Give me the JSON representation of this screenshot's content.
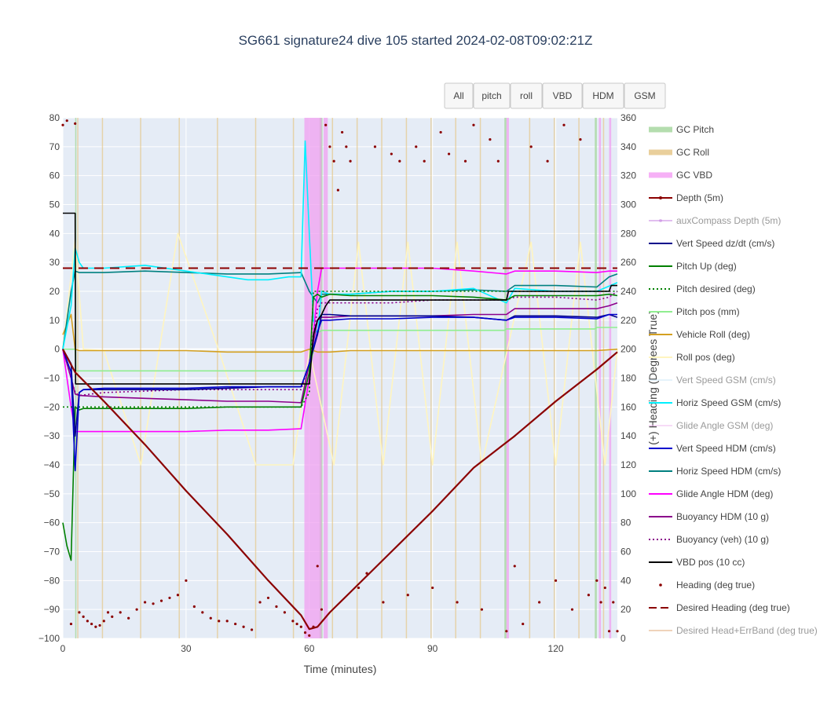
{
  "chart_data": {
    "type": "line",
    "title": "SG661 signature24 dive 105 started 2024-02-08T09:02:21Z",
    "xlabel": "Time (minutes)",
    "ylabel": "",
    "y2label": "(+) Heading (Degrees True)",
    "xlim": [
      0,
      135
    ],
    "ylim": [
      -100,
      80
    ],
    "y2lim": [
      0,
      360
    ],
    "xticks": [
      "0",
      "30",
      "60",
      "90",
      "120"
    ],
    "yticks": [
      "80",
      "70",
      "60",
      "50",
      "40",
      "30",
      "20",
      "10",
      "0",
      "−10",
      "−20",
      "−30",
      "−40",
      "−50",
      "−60",
      "−70",
      "−80",
      "−90",
      "−100"
    ],
    "y2ticks": [
      "360",
      "340",
      "320",
      "300",
      "280",
      "260",
      "240",
      "220",
      "200",
      "180",
      "160",
      "140",
      "120",
      "100",
      "80",
      "60",
      "40",
      "20",
      "0"
    ],
    "grid": true,
    "legend_position": "right",
    "buttons": [
      "All",
      "pitch",
      "roll",
      "VBD",
      "HDM",
      "GSM"
    ],
    "gc_pitch_intervals": [
      [
        3.0,
        3.3
      ],
      [
        62.5,
        63.2
      ],
      [
        107.5,
        108.0
      ],
      [
        129.5,
        130.0
      ]
    ],
    "gc_roll_intervals": [
      [
        3.5,
        3.7
      ],
      [
        9.5,
        9.7
      ],
      [
        18.8,
        19.0
      ],
      [
        28.2,
        28.4
      ],
      [
        37.5,
        37.7
      ],
      [
        46.8,
        47.0
      ],
      [
        56.0,
        56.2
      ],
      [
        65.5,
        65.7
      ],
      [
        71.5,
        71.7
      ],
      [
        77.5,
        77.7
      ],
      [
        83.5,
        83.7
      ],
      [
        89.5,
        89.7
      ],
      [
        95.5,
        95.7
      ],
      [
        101.5,
        101.7
      ],
      [
        113.5,
        113.7
      ],
      [
        119.5,
        119.7
      ],
      [
        125.5,
        125.7
      ],
      [
        131.5,
        131.7
      ]
    ],
    "gc_vbd_intervals": [
      [
        58.8,
        63.0
      ],
      [
        63.5,
        64.5
      ],
      [
        108.0,
        108.6
      ],
      [
        130.5,
        131.0
      ],
      [
        133.0,
        133.5
      ]
    ],
    "series": [
      {
        "name": "GC Pitch",
        "color": "#a8d8a0",
        "dash": "solid",
        "kind": "band",
        "values": []
      },
      {
        "name": "GC Roll",
        "color": "#e6c78a",
        "dash": "solid",
        "kind": "band",
        "values": []
      },
      {
        "name": "GC VBD",
        "color": "#f5a3f5",
        "dash": "solid",
        "kind": "band",
        "values": []
      },
      {
        "name": "Depth (5m)",
        "color": "#8b0000",
        "dash": "solid",
        "kind": "line",
        "axis": "y",
        "x": [
          0,
          3,
          10,
          20,
          30,
          40,
          50,
          58,
          60,
          62,
          65,
          70,
          80,
          90,
          100,
          110,
          120,
          130,
          135
        ],
        "y": [
          0,
          -8,
          -18,
          -33,
          -49,
          -64,
          -80,
          -92,
          -96.8,
          -96,
          -91,
          -84,
          -70,
          -56,
          -41,
          -30,
          -18,
          -7,
          -1
        ]
      },
      {
        "name": "auxCompass Depth (5m)",
        "color": "#c47fe0",
        "dash": "solid",
        "kind": "line",
        "axis": "y",
        "dim": true,
        "x": [
          0,
          135
        ],
        "y": [
          0,
          0
        ],
        "hidden": true
      },
      {
        "name": "Vert Speed dz/dt (cm/s)",
        "color": "#00008b",
        "dash": "solid",
        "kind": "line",
        "axis": "y",
        "x": [
          0,
          2,
          3,
          4,
          5,
          10,
          20,
          30,
          40,
          50,
          58,
          60,
          62,
          63,
          65,
          70,
          80,
          90,
          100,
          108,
          110,
          120,
          130,
          133,
          135
        ],
        "y": [
          0,
          -5,
          -30,
          -15,
          -14,
          -14,
          -14,
          -14,
          -13.5,
          -13,
          -13,
          -5,
          5,
          12,
          12,
          11.5,
          11.5,
          11.5,
          11,
          10,
          11.5,
          11.5,
          11,
          12,
          11
        ]
      },
      {
        "name": "Pitch Up (deg)",
        "color": "#008000",
        "dash": "solid",
        "kind": "line",
        "axis": "y",
        "x": [
          0,
          1,
          2,
          3,
          4,
          5,
          10,
          20,
          30,
          40,
          50,
          58,
          60,
          61,
          62,
          63,
          65,
          70,
          80,
          90,
          100,
          108,
          110,
          120,
          130,
          133,
          135
        ],
        "y": [
          -60,
          -68,
          -73,
          -20,
          -21,
          -20.5,
          -20.5,
          -20.5,
          -20.5,
          -20,
          -20,
          -20,
          -8,
          18,
          19,
          18,
          19,
          18.5,
          18.5,
          18.5,
          18,
          17,
          18.5,
          18.5,
          18.5,
          19,
          18.5
        ]
      },
      {
        "name": "Pitch desired (deg)",
        "color": "#008000",
        "dash": "dot",
        "kind": "line",
        "axis": "y",
        "x": [
          0,
          3,
          58,
          60,
          61,
          62,
          135
        ],
        "y": [
          -20,
          -20,
          -20,
          -15,
          20,
          20,
          20
        ]
      },
      {
        "name": "Pitch pos (mm)",
        "color": "#90ee90",
        "dash": "solid",
        "kind": "line",
        "axis": "y",
        "x": [
          0,
          3,
          3.2,
          58,
          60,
          62,
          62.5,
          63,
          107.5,
          108,
          129.5,
          130,
          135
        ],
        "y": [
          0,
          0,
          -7.5,
          -7.5,
          -7.5,
          6,
          6,
          6.5,
          6.5,
          7,
          7,
          7.5,
          7.5
        ]
      },
      {
        "name": "Vehicle Roll (deg)",
        "color": "#d4a020",
        "dash": "solid",
        "kind": "line",
        "axis": "y",
        "x": [
          0,
          2,
          3,
          4,
          10,
          20,
          30,
          40,
          50,
          58,
          60,
          62,
          65,
          70,
          80,
          90,
          100,
          110,
          120,
          130,
          135
        ],
        "y": [
          5,
          12,
          0,
          -0.5,
          -0.5,
          -0.5,
          -0.5,
          -1,
          -1,
          -1,
          0,
          -1,
          -1,
          -0.5,
          -0.5,
          -0.5,
          -0.5,
          -0.5,
          -0.5,
          -0.5,
          0
        ]
      },
      {
        "name": "Roll pos (deg)",
        "color": "#fff5c0",
        "dash": "solid",
        "kind": "line",
        "axis": "y",
        "x": [
          0,
          3,
          5,
          10,
          19,
          28,
          38,
          47,
          56,
          60,
          66,
          72,
          78,
          84,
          90,
          96,
          102,
          114,
          120,
          126,
          132,
          135
        ],
        "y": [
          0,
          38,
          0,
          -0.5,
          -40,
          40,
          -0.5,
          -40,
          -40,
          -0.5,
          -40,
          37,
          -40,
          37,
          -40,
          37,
          -40,
          37,
          -40,
          37,
          -40,
          0
        ]
      },
      {
        "name": "Vert Speed GSM (cm/s)",
        "color": "#cce8f8",
        "dash": "solid",
        "kind": "line",
        "axis": "y",
        "dim": true,
        "x": [
          0,
          135
        ],
        "y": [
          0,
          0
        ],
        "hidden": true
      },
      {
        "name": "Horiz Speed GSM (cm/s)",
        "color": "#00f0ff",
        "dash": "solid",
        "kind": "line",
        "axis": "y",
        "x": [
          0,
          2,
          3,
          4,
          5,
          10,
          15,
          20,
          30,
          40,
          45,
          50,
          55,
          58,
          59,
          60,
          61,
          62,
          63,
          65,
          70,
          80,
          90,
          100,
          108,
          110,
          120,
          130,
          135
        ],
        "y": [
          0,
          15,
          35,
          30,
          28,
          28,
          28.5,
          29,
          27,
          25,
          24,
          24,
          25,
          25,
          72,
          40,
          10,
          5,
          20,
          19,
          19,
          20,
          20,
          21,
          16,
          21,
          20,
          20,
          23
        ]
      },
      {
        "name": "Glide Angle GSM (deg)",
        "color": "#f0b8f0",
        "dash": "solid",
        "kind": "line",
        "axis": "y",
        "dim": true,
        "x": [
          0,
          135
        ],
        "y": [
          0,
          0
        ],
        "hidden": true
      },
      {
        "name": "Vert Speed HDM (cm/s)",
        "color": "#0000cd",
        "dash": "solid",
        "kind": "line",
        "axis": "y",
        "x": [
          0,
          2,
          3,
          4,
          5,
          10,
          20,
          30,
          40,
          50,
          58,
          60,
          62,
          63,
          65,
          70,
          80,
          90,
          100,
          108,
          110,
          120,
          130,
          133,
          135
        ],
        "y": [
          0,
          -8,
          -42,
          -15,
          -14,
          -13.5,
          -13.5,
          -13.5,
          -13,
          -13,
          -13,
          -5,
          6,
          10,
          10,
          10.5,
          10.5,
          11,
          11,
          10,
          11,
          11,
          10.5,
          12,
          12
        ]
      },
      {
        "name": "Horiz Speed HDM (cm/s)",
        "color": "#008080",
        "dash": "solid",
        "kind": "line",
        "axis": "y",
        "x": [
          0,
          2,
          3,
          4,
          5,
          10,
          20,
          30,
          40,
          50,
          58,
          60,
          62,
          63,
          65,
          70,
          80,
          90,
          100,
          108,
          110,
          120,
          130,
          133,
          135
        ],
        "y": [
          0,
          20,
          27,
          26.5,
          26.5,
          26.5,
          27,
          26.5,
          26,
          26,
          26.5,
          20,
          16,
          19,
          19,
          19,
          20,
          20,
          20.5,
          20,
          22,
          22,
          21.5,
          25,
          26
        ]
      },
      {
        "name": "Glide Angle HDM (deg)",
        "color": "#ff00ff",
        "dash": "solid",
        "kind": "line",
        "axis": "y",
        "x": [
          0,
          2,
          3,
          4,
          5,
          10,
          20,
          30,
          40,
          50,
          58,
          60,
          62,
          63,
          65,
          70,
          80,
          90,
          100,
          108,
          110,
          120,
          130,
          133,
          135
        ],
        "y": [
          0,
          -20,
          -28.5,
          -28.5,
          -28.5,
          -28.5,
          -28.5,
          -28.5,
          -28,
          -28,
          -27.5,
          -10,
          20,
          28,
          28,
          28,
          28,
          28,
          27,
          26,
          27,
          27,
          26.5,
          27,
          27
        ]
      },
      {
        "name": "Buoyancy HDM (10 g)",
        "color": "#8b008b",
        "dash": "solid",
        "kind": "line",
        "axis": "y",
        "x": [
          0,
          2,
          3,
          4,
          10,
          20,
          30,
          40,
          50,
          58,
          60,
          62,
          63,
          65,
          70,
          80,
          90,
          100,
          108,
          110,
          120,
          130,
          133,
          135
        ],
        "y": [
          0,
          -10,
          -15.5,
          -16,
          -16.5,
          -17,
          -17.5,
          -18,
          -18,
          -18.5,
          -5,
          10,
          11,
          11,
          11.5,
          11.5,
          11.5,
          12,
          12,
          14,
          14,
          14,
          15,
          16
        ]
      },
      {
        "name": "Buoyancy (veh) (10 g)",
        "color": "#8b008b",
        "dash": "dot",
        "kind": "line",
        "axis": "y",
        "x": [
          0,
          2,
          3,
          4,
          10,
          20,
          30,
          40,
          50,
          58,
          60,
          62,
          63,
          65,
          70,
          80,
          90,
          100,
          108,
          110,
          120,
          130,
          133,
          135
        ],
        "y": [
          0,
          -10,
          -15,
          -16,
          -15,
          -14.5,
          -14,
          -14,
          -14,
          -14,
          -5,
          14,
          16,
          16,
          16,
          16,
          17,
          17,
          17,
          18,
          18,
          17,
          18,
          20
        ]
      },
      {
        "name": "VBD pos (10 cc)",
        "color": "#000000",
        "dash": "solid",
        "kind": "line",
        "axis": "y",
        "x": [
          0,
          3,
          3.1,
          58,
          58.5,
          60,
          61,
          62,
          63,
          64,
          64.5,
          65,
          65.5,
          108,
          108.5,
          130.5,
          131,
          133,
          133.5,
          135
        ],
        "y": [
          47,
          47,
          -12,
          -12,
          -12,
          -12,
          5,
          10,
          12,
          15,
          16,
          17,
          17,
          17,
          20,
          20,
          20,
          20,
          22,
          22
        ]
      },
      {
        "name": "Heading (deg true)",
        "color": "#8b0000",
        "dash": "none",
        "kind": "markers",
        "axis": "y2",
        "x": [
          0,
          1,
          2,
          3,
          4,
          5,
          6,
          7,
          8,
          9,
          10,
          11,
          12,
          14,
          16,
          18,
          20,
          22,
          24,
          26,
          28,
          30,
          32,
          34,
          36,
          38,
          40,
          42,
          44,
          46,
          48,
          50,
          52,
          54,
          56,
          57,
          58,
          59,
          60,
          61,
          62,
          63,
          64,
          65,
          66,
          67,
          68,
          69,
          70,
          72,
          74,
          76,
          78,
          80,
          82,
          84,
          86,
          88,
          90,
          92,
          94,
          96,
          98,
          100,
          102,
          104,
          106,
          108,
          110,
          112,
          114,
          116,
          118,
          120,
          122,
          124,
          126,
          128,
          130,
          131,
          132,
          133,
          134,
          135
        ],
        "y": [
          355,
          358,
          10,
          356,
          18,
          15,
          12,
          10,
          8,
          9,
          12,
          18,
          15,
          18,
          14,
          20,
          25,
          24,
          26,
          28,
          30,
          40,
          22,
          18,
          14,
          12,
          12,
          10,
          8,
          6,
          25,
          28,
          22,
          18,
          12,
          10,
          8,
          4,
          2,
          8,
          50,
          20,
          355,
          340,
          330,
          310,
          350,
          340,
          330,
          35,
          45,
          340,
          25,
          335,
          330,
          30,
          340,
          330,
          35,
          350,
          335,
          25,
          330,
          355,
          20,
          345,
          330,
          5,
          50,
          10,
          340,
          25,
          330,
          40,
          355,
          20,
          345,
          30,
          40,
          25,
          35,
          5,
          25,
          5
        ]
      },
      {
        "name": "Desired Heading (deg true)",
        "color": "#8b0000",
        "dash": "dash",
        "kind": "line",
        "axis": "y2",
        "x": [
          0,
          135
        ],
        "y": [
          256,
          256
        ]
      },
      {
        "name": "Desired Head+ErrBand (deg true)",
        "color": "#e0a878",
        "dash": "solid",
        "kind": "line",
        "axis": "y2",
        "dim": true,
        "x": [
          0,
          135
        ],
        "y": [
          0,
          0
        ],
        "hidden": true
      }
    ]
  }
}
